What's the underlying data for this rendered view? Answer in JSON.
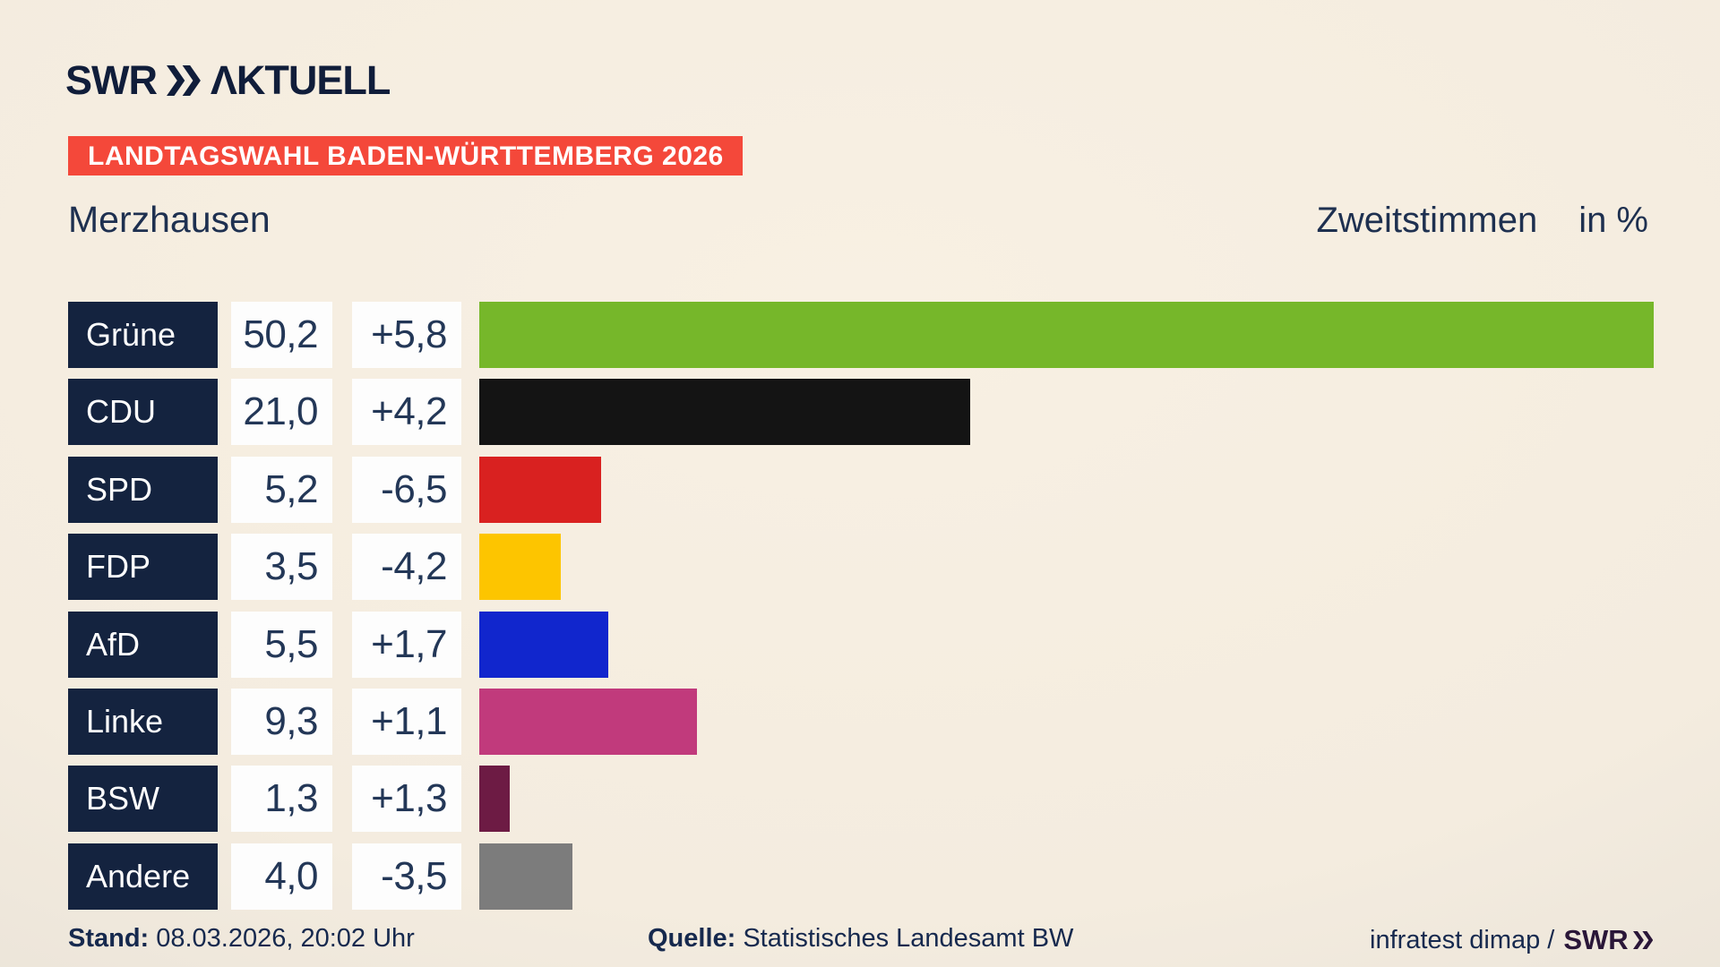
{
  "header": {
    "logo_swr": "SWR",
    "logo_aktuell": "ΛKTUELL",
    "banner": "LANDTAGSWAHL BADEN-WÜRTTEMBERG 2026"
  },
  "title": {
    "municipality": "Merzhausen",
    "measure": "Zweitstimmen",
    "unit": "in %"
  },
  "chart_data": {
    "type": "bar",
    "orientation": "horizontal",
    "title": "Merzhausen – Zweitstimmen in %",
    "categories": [
      "Grüne",
      "CDU",
      "SPD",
      "FDP",
      "AfD",
      "Linke",
      "BSW",
      "Andere"
    ],
    "values": [
      50.2,
      21.0,
      5.2,
      3.5,
      5.5,
      9.3,
      1.3,
      4.0
    ],
    "changes": [
      5.8,
      4.2,
      -6.5,
      -4.2,
      1.7,
      1.1,
      1.3,
      -3.5
    ],
    "value_labels": [
      "50,2",
      "21,0",
      "5,2",
      "3,5",
      "5,5",
      "9,3",
      "1,3",
      "4,0"
    ],
    "change_labels": [
      "+5,8",
      "+4,2",
      "-6,5",
      "-4,2",
      "+1,7",
      "+1,1",
      "+1,3",
      "-3,5"
    ],
    "bar_colors": [
      "#76b72a",
      "#141414",
      "#d92120",
      "#fdc500",
      "#1126cd",
      "#c13a7c",
      "#6d1b44",
      "#7c7c7c"
    ],
    "xlim": [
      0,
      50.2
    ],
    "grid": false,
    "legend": "none"
  },
  "footer": {
    "stand_label": "Stand:",
    "stand_value": "08.03.2026, 20:02 Uhr",
    "quelle_label": "Quelle:",
    "quelle_value": "Statistisches Landesamt BW",
    "credit_text": "infratest dimap /",
    "credit_logo": "SWR"
  },
  "colors": {
    "banner_red": "#f4483a",
    "label_box_navy": "#14233f",
    "value_box_white": "#fdfdfd",
    "text_navy": "#233757",
    "background_beige": "#f4ecdf"
  }
}
